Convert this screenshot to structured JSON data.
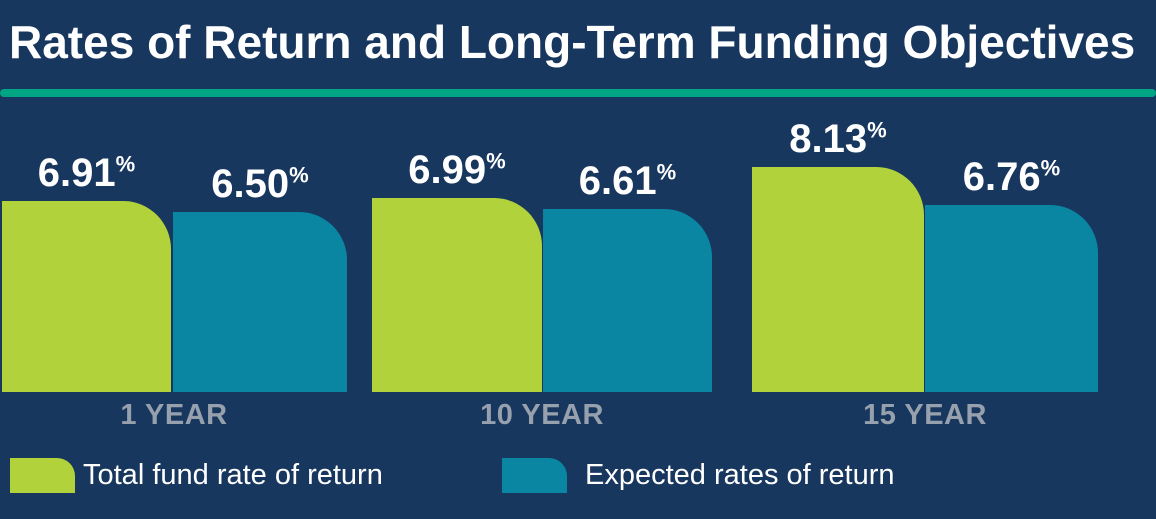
{
  "title": "Rates of Return and Long-Term Funding Objectives",
  "colors": {
    "background": "#18375e",
    "green": "#b2d23c",
    "teal": "#0a86a3",
    "divider": "#00a583",
    "category_label": "#97a0ad",
    "value_text": "#ffffff"
  },
  "chart_data": {
    "type": "bar",
    "title": "Rates of Return and Long-Term Funding Objectives",
    "categories": [
      "1 YEAR",
      "10 YEAR",
      "15 YEAR"
    ],
    "series": [
      {
        "name": "Total fund rate of return",
        "color": "#b2d23c",
        "values": [
          6.91,
          6.99,
          8.13
        ],
        "labels": [
          "6.91",
          "6.99",
          "8.13"
        ]
      },
      {
        "name": "Expected rates of return",
        "color": "#0a86a3",
        "values": [
          6.5,
          6.61,
          6.76
        ],
        "labels": [
          "6.50",
          "6.61",
          "6.76"
        ]
      }
    ],
    "value_suffix": "%",
    "ylim": [
      0,
      8.5
    ],
    "grid": false,
    "legend_position": "bottom"
  },
  "legend": [
    {
      "label": "Total fund rate of return",
      "color_key": "green"
    },
    {
      "label": "Expected rates of return",
      "color_key": "teal"
    }
  ]
}
